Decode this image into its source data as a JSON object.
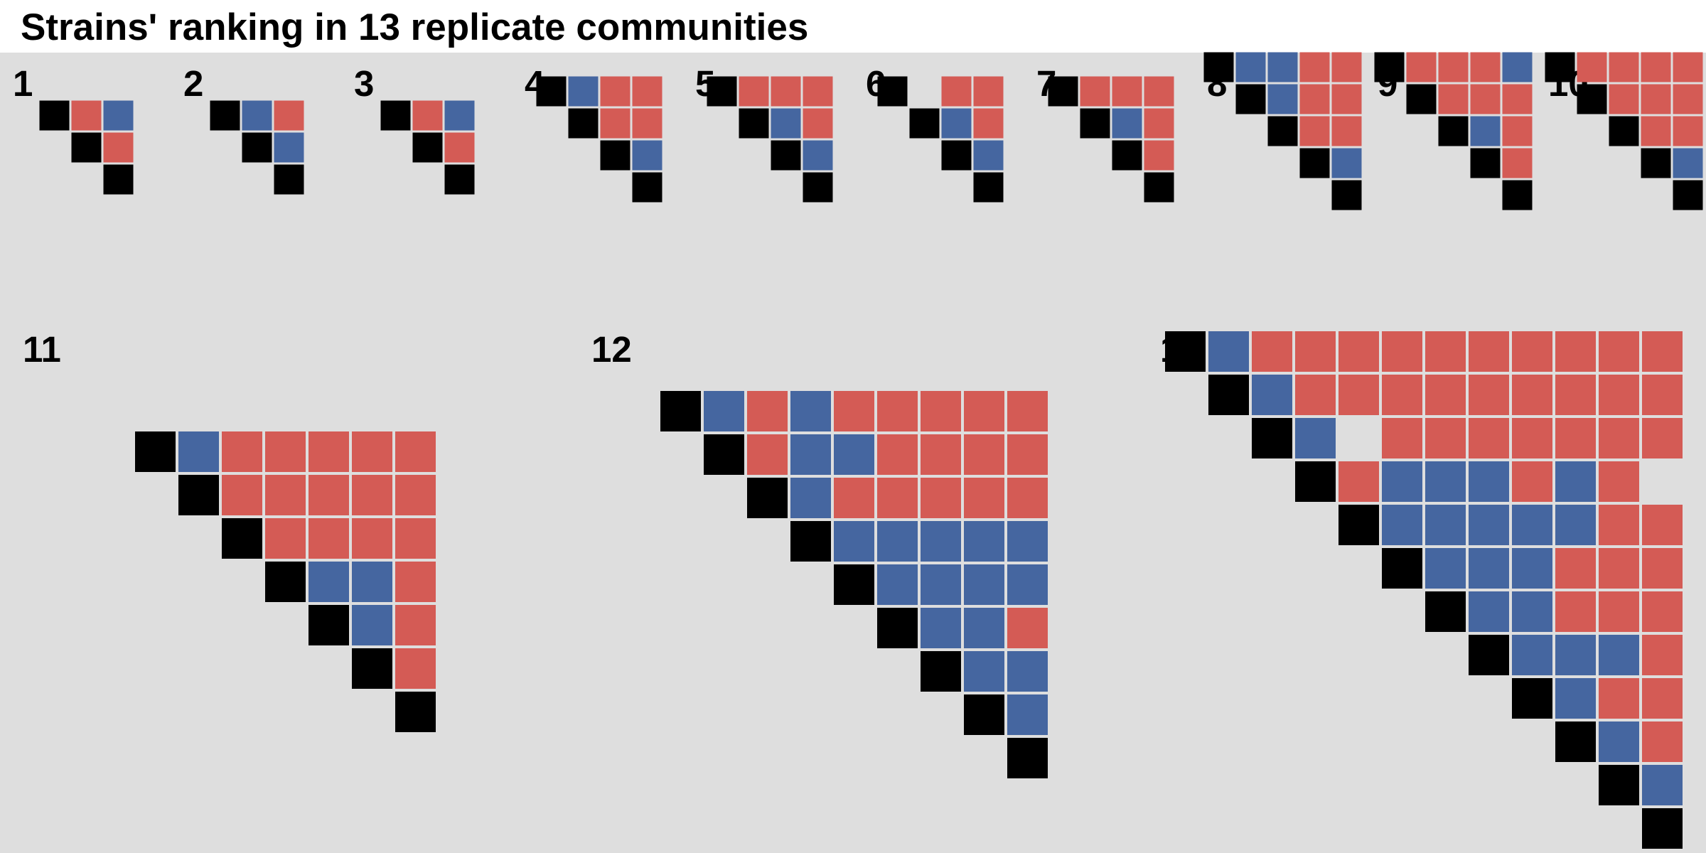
{
  "title": "Strains' ranking in 13 replicate communities",
  "colors": {
    "diagonal": "#000000",
    "a": "#d45b55",
    "b": "#4566a0",
    "empty": "#dedede",
    "background": "#dedede"
  },
  "chart_data": {
    "type": "heatmap",
    "title": "Strains' ranking in 13 replicate communities",
    "legend": "none",
    "encoding": {
      "D": "diagonal",
      "R": "red",
      "B": "blue",
      ".": "empty"
    },
    "panels": [
      {
        "label": "1",
        "rows": [
          "DRB",
          "DR",
          "D"
        ]
      },
      {
        "label": "2",
        "rows": [
          "DBR",
          "DB",
          "D"
        ]
      },
      {
        "label": "3",
        "rows": [
          "DRB",
          "DR",
          "D"
        ]
      },
      {
        "label": "4",
        "rows": [
          "DBRR",
          "DRR",
          "DB",
          "D"
        ]
      },
      {
        "label": "5",
        "rows": [
          "DRRR",
          "DBR",
          "DB",
          "D"
        ]
      },
      {
        "label": "6",
        "rows": [
          "D.RR",
          "DBR",
          "DB",
          "D"
        ]
      },
      {
        "label": "7",
        "rows": [
          "DRRR",
          "DBR",
          "DR",
          "D"
        ]
      },
      {
        "label": "8",
        "rows": [
          "DBBRR",
          "DBRR",
          "DRR",
          "DB",
          "D"
        ]
      },
      {
        "label": "9",
        "rows": [
          "DRRRB",
          "DRRR",
          "DBR",
          "DR",
          "D"
        ]
      },
      {
        "label": "10",
        "rows": [
          "DRRRR",
          "DRRR",
          "DRR",
          "DB",
          "D"
        ]
      },
      {
        "label": "11",
        "rows": [
          "DBRRRRR",
          "DRRRRR",
          "DRRRR",
          "DBBR",
          "DBR",
          "DR",
          "D"
        ]
      },
      {
        "label": "12",
        "rows": [
          "DBRBRRRRR",
          "DRBBRRRR",
          "DBRRRRR",
          "DBBBBB",
          "DBBBB",
          "DBBR",
          "DBB",
          "DB",
          "D"
        ]
      },
      {
        "label": "13",
        "rows": [
          "DBRRRRRRRRRR",
          "DBRRRRRRRRR",
          "DB.RRRRRRR",
          "DRBBBRBR",
          "DBBBBBRR",
          "DBBBRRR",
          "DBBRRR",
          "DBBBR",
          "DBRR",
          "DBR",
          "DB",
          "D"
        ]
      }
    ]
  }
}
